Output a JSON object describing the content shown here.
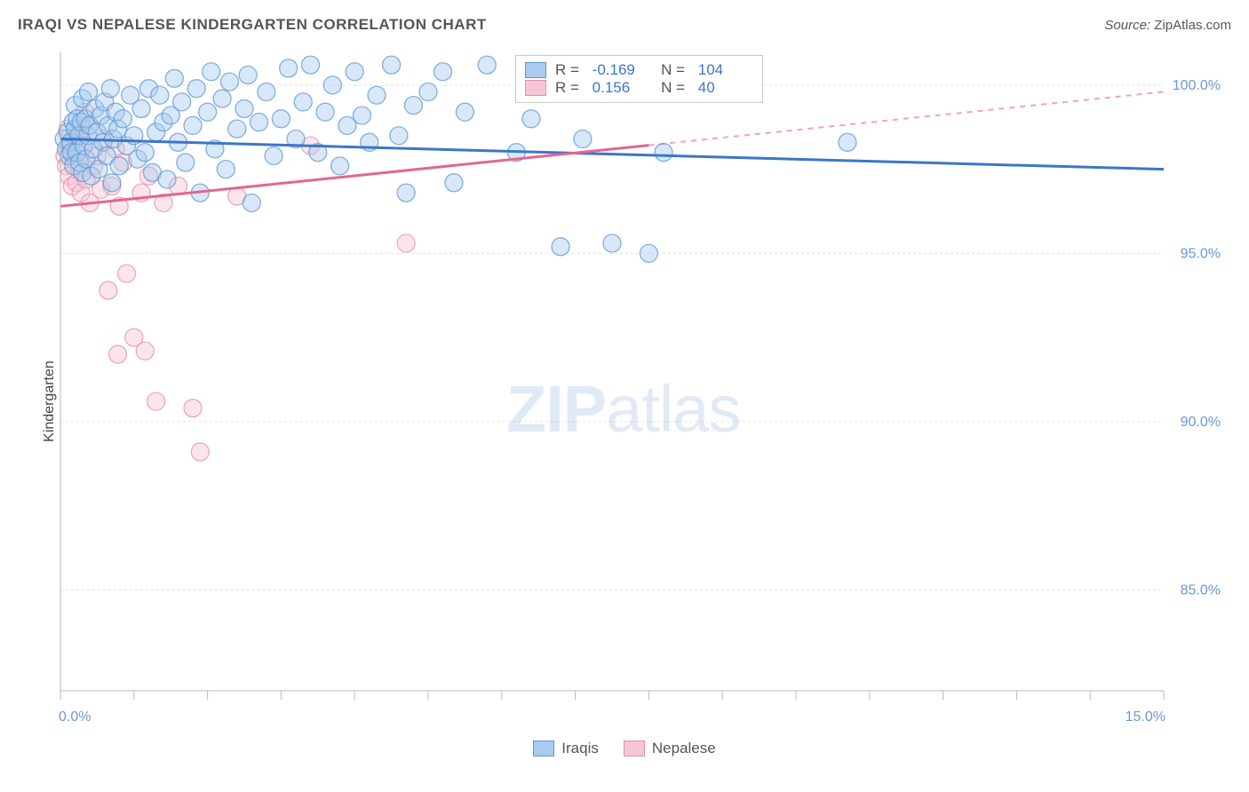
{
  "title": "IRAQI VS NEPALESE KINDERGARTEN CORRELATION CHART",
  "source_label": "Source:",
  "source_value": "ZipAtlas.com",
  "ylabel": "Kindergarten",
  "watermark": {
    "bold": "ZIP",
    "rest": "atlas"
  },
  "chart": {
    "type": "scatter",
    "background_color": "#ffffff",
    "grid_color": "#e3e3e3",
    "axis_color": "#b8b8b8",
    "tick_label_color": "#6898d8",
    "text_color": "#555555",
    "marker_radius": 10,
    "marker_opacity": 0.45,
    "xlim": [
      0,
      15
    ],
    "ylim": [
      82,
      101
    ],
    "x_ticks_minor": [
      1,
      2,
      3,
      4,
      5,
      6,
      7,
      8,
      9,
      10,
      11,
      12,
      13,
      14
    ],
    "x_ticks_labeled": [
      {
        "v": 0,
        "label": "0.0%"
      },
      {
        "v": 15,
        "label": "15.0%"
      }
    ],
    "y_ticks": [
      {
        "v": 85,
        "label": "85.0%"
      },
      {
        "v": 90,
        "label": "90.0%"
      },
      {
        "v": 95,
        "label": "95.0%"
      },
      {
        "v": 100,
        "label": "100.0%"
      }
    ],
    "legend_bottom": [
      {
        "label": "Iraqis",
        "fill": "#a9cbef",
        "stroke": "#5f95d6"
      },
      {
        "label": "Nepalese",
        "fill": "#f6c6d5",
        "stroke": "#e48fab"
      }
    ],
    "legend_stats": [
      {
        "fill": "#a9cbef",
        "stroke": "#5f95d6",
        "r": "-0.169",
        "n": "104"
      },
      {
        "fill": "#f6c6d5",
        "stroke": "#e48fab",
        "r": "0.156",
        "n": "40"
      }
    ],
    "series": {
      "iraqis": {
        "color_fill": "#a9cbef",
        "color_stroke": "#5f95d6",
        "trend_color": "#3a77c9",
        "trend": {
          "x1": 0,
          "y1": 98.4,
          "x2": 15,
          "y2": 97.5
        },
        "trend_dash_from_x": null,
        "points": [
          [
            0.05,
            98.4
          ],
          [
            0.08,
            98.1
          ],
          [
            0.1,
            98.6
          ],
          [
            0.12,
            97.9
          ],
          [
            0.14,
            98.3
          ],
          [
            0.15,
            98.0
          ],
          [
            0.17,
            98.9
          ],
          [
            0.18,
            97.6
          ],
          [
            0.2,
            99.4
          ],
          [
            0.2,
            98.7
          ],
          [
            0.22,
            98.0
          ],
          [
            0.23,
            99.0
          ],
          [
            0.25,
            98.5
          ],
          [
            0.26,
            97.7
          ],
          [
            0.28,
            98.9
          ],
          [
            0.3,
            97.4
          ],
          [
            0.3,
            99.6
          ],
          [
            0.32,
            98.2
          ],
          [
            0.34,
            99.0
          ],
          [
            0.35,
            97.8
          ],
          [
            0.37,
            98.5
          ],
          [
            0.38,
            99.8
          ],
          [
            0.4,
            98.8
          ],
          [
            0.42,
            97.3
          ],
          [
            0.45,
            98.1
          ],
          [
            0.47,
            99.3
          ],
          [
            0.5,
            98.6
          ],
          [
            0.52,
            97.5
          ],
          [
            0.55,
            99.1
          ],
          [
            0.58,
            98.3
          ],
          [
            0.6,
            99.5
          ],
          [
            0.63,
            97.9
          ],
          [
            0.65,
            98.8
          ],
          [
            0.68,
            99.9
          ],
          [
            0.7,
            97.1
          ],
          [
            0.72,
            98.4
          ],
          [
            0.75,
            99.2
          ],
          [
            0.78,
            98.7
          ],
          [
            0.8,
            97.6
          ],
          [
            0.85,
            99.0
          ],
          [
            0.9,
            98.2
          ],
          [
            0.95,
            99.7
          ],
          [
            1.0,
            98.5
          ],
          [
            1.05,
            97.8
          ],
          [
            1.1,
            99.3
          ],
          [
            1.15,
            98.0
          ],
          [
            1.2,
            99.9
          ],
          [
            1.25,
            97.4
          ],
          [
            1.3,
            98.6
          ],
          [
            1.35,
            99.7
          ],
          [
            1.4,
            98.9
          ],
          [
            1.45,
            97.2
          ],
          [
            1.5,
            99.1
          ],
          [
            1.55,
            100.2
          ],
          [
            1.6,
            98.3
          ],
          [
            1.65,
            99.5
          ],
          [
            1.7,
            97.7
          ],
          [
            1.8,
            98.8
          ],
          [
            1.85,
            99.9
          ],
          [
            1.9,
            96.8
          ],
          [
            2.0,
            99.2
          ],
          [
            2.05,
            100.4
          ],
          [
            2.1,
            98.1
          ],
          [
            2.2,
            99.6
          ],
          [
            2.25,
            97.5
          ],
          [
            2.3,
            100.1
          ],
          [
            2.4,
            98.7
          ],
          [
            2.5,
            99.3
          ],
          [
            2.55,
            100.3
          ],
          [
            2.6,
            96.5
          ],
          [
            2.7,
            98.9
          ],
          [
            2.8,
            99.8
          ],
          [
            2.9,
            97.9
          ],
          [
            3.0,
            99.0
          ],
          [
            3.1,
            100.5
          ],
          [
            3.2,
            98.4
          ],
          [
            3.3,
            99.5
          ],
          [
            3.4,
            100.6
          ],
          [
            3.5,
            98.0
          ],
          [
            3.6,
            99.2
          ],
          [
            3.7,
            100.0
          ],
          [
            3.8,
            97.6
          ],
          [
            3.9,
            98.8
          ],
          [
            4.0,
            100.4
          ],
          [
            4.1,
            99.1
          ],
          [
            4.2,
            98.3
          ],
          [
            4.3,
            99.7
          ],
          [
            4.5,
            100.6
          ],
          [
            4.6,
            98.5
          ],
          [
            4.7,
            96.8
          ],
          [
            4.8,
            99.4
          ],
          [
            5.0,
            99.8
          ],
          [
            5.2,
            100.4
          ],
          [
            5.35,
            97.1
          ],
          [
            5.5,
            99.2
          ],
          [
            5.8,
            100.6
          ],
          [
            6.2,
            98.0
          ],
          [
            6.4,
            99.0
          ],
          [
            6.8,
            95.2
          ],
          [
            7.1,
            98.4
          ],
          [
            7.5,
            95.3
          ],
          [
            8.0,
            95.0
          ],
          [
            8.2,
            98.0
          ],
          [
            10.7,
            98.3
          ]
        ]
      },
      "nepalese": {
        "color_fill": "#f6c6d5",
        "color_stroke": "#e48fab",
        "trend_color": "#e36690",
        "trend": {
          "x1": 0,
          "y1": 96.4,
          "x2": 15,
          "y2": 99.8
        },
        "trend_dash_from_x": 8.0,
        "points": [
          [
            0.06,
            97.9
          ],
          [
            0.08,
            97.6
          ],
          [
            0.1,
            98.7
          ],
          [
            0.12,
            97.3
          ],
          [
            0.14,
            98.2
          ],
          [
            0.16,
            97.0
          ],
          [
            0.18,
            97.8
          ],
          [
            0.2,
            98.5
          ],
          [
            0.22,
            97.1
          ],
          [
            0.24,
            98.0
          ],
          [
            0.26,
            97.5
          ],
          [
            0.28,
            96.8
          ],
          [
            0.3,
            98.3
          ],
          [
            0.33,
            99.2
          ],
          [
            0.35,
            97.2
          ],
          [
            0.38,
            98.8
          ],
          [
            0.4,
            96.5
          ],
          [
            0.45,
            97.6
          ],
          [
            0.5,
            97.9
          ],
          [
            0.55,
            96.9
          ],
          [
            0.6,
            98.4
          ],
          [
            0.65,
            93.9
          ],
          [
            0.7,
            97.0
          ],
          [
            0.75,
            98.1
          ],
          [
            0.78,
            92.0
          ],
          [
            0.8,
            96.4
          ],
          [
            0.85,
            97.7
          ],
          [
            0.9,
            94.4
          ],
          [
            1.0,
            92.5
          ],
          [
            1.1,
            96.8
          ],
          [
            1.15,
            92.1
          ],
          [
            1.2,
            97.3
          ],
          [
            1.3,
            90.6
          ],
          [
            1.4,
            96.5
          ],
          [
            1.6,
            97.0
          ],
          [
            1.8,
            90.4
          ],
          [
            1.9,
            89.1
          ],
          [
            2.4,
            96.7
          ],
          [
            3.4,
            98.2
          ],
          [
            4.7,
            95.3
          ]
        ]
      }
    }
  }
}
